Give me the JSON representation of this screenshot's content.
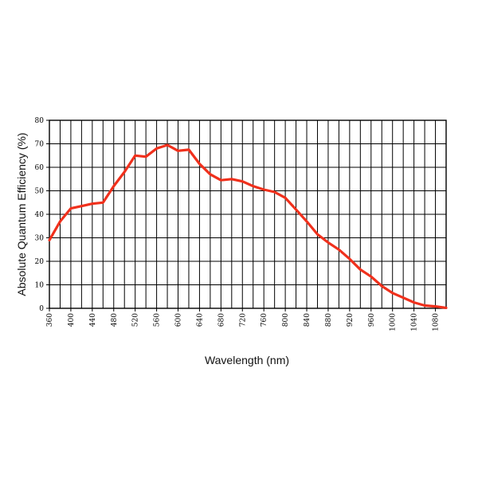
{
  "chart_data": {
    "type": "line",
    "xlabel": "Wavelength (nm)",
    "ylabel": "Absolute Quantum Efficiency (%)",
    "xlim": [
      360,
      1100
    ],
    "ylim": [
      0,
      80
    ],
    "x_ticks": [
      360,
      400,
      440,
      480,
      520,
      560,
      600,
      640,
      680,
      720,
      760,
      800,
      840,
      880,
      920,
      960,
      1000,
      1040,
      1080
    ],
    "y_ticks": [
      0,
      10,
      20,
      30,
      40,
      50,
      60,
      70,
      80
    ],
    "x_gridlines_every": 20,
    "y_gridlines_every": 10,
    "grid": true,
    "series": [
      {
        "color": "#f0301c",
        "x": [
          360,
          380,
          400,
          420,
          440,
          460,
          480,
          500,
          520,
          540,
          560,
          580,
          600,
          620,
          640,
          660,
          680,
          700,
          720,
          740,
          760,
          780,
          800,
          820,
          840,
          860,
          880,
          900,
          920,
          940,
          960,
          980,
          1000,
          1020,
          1040,
          1060,
          1080,
          1100
        ],
        "y": [
          29,
          37,
          42.5,
          43.5,
          44.5,
          45,
          52,
          58,
          65,
          64.5,
          68,
          69.5,
          67,
          67.5,
          61.5,
          57,
          54.5,
          55,
          54,
          52,
          50.5,
          49.5,
          47,
          42,
          37,
          31.5,
          28,
          25,
          21,
          16.5,
          13.5,
          9.5,
          6.5,
          4.5,
          2.5,
          1.2,
          0.8,
          0.2
        ]
      }
    ]
  }
}
